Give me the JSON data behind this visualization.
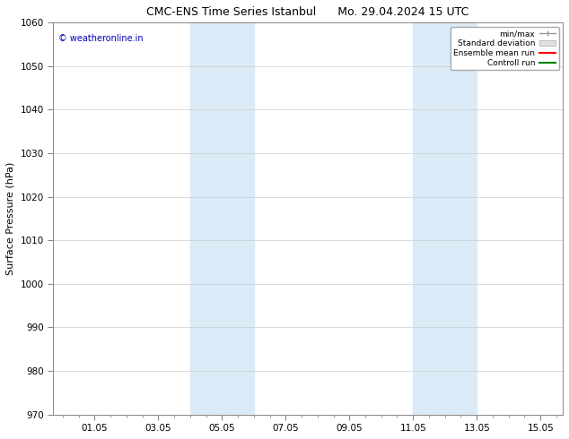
{
  "title_left": "CMC-ENS Time Series Istanbul",
  "title_right": "Mo. 29.04.2024 15 UTC",
  "ylabel": "Surface Pressure (hPa)",
  "ylim": [
    970,
    1060
  ],
  "yticks": [
    970,
    980,
    990,
    1000,
    1010,
    1020,
    1030,
    1040,
    1050,
    1060
  ],
  "xtick_labels": [
    "01.05",
    "03.05",
    "05.05",
    "07.05",
    "09.05",
    "11.05",
    "13.05",
    "15.05"
  ],
  "xtick_positions": [
    1.0,
    3.0,
    5.0,
    7.0,
    9.0,
    11.0,
    13.0,
    15.0
  ],
  "xlim": [
    -0.3,
    15.7
  ],
  "shaded_regions": [
    {
      "xstart": 4.0,
      "xend": 6.0,
      "color": "#daeaf7"
    },
    {
      "xstart": 11.0,
      "xend": 13.0,
      "color": "#daeaf7"
    }
  ],
  "watermark_text": "© weatheronline.in",
  "watermark_color": "#0000bb",
  "watermark_fontsize": 7,
  "legend_labels": [
    "min/max",
    "Standard deviation",
    "Ensemble mean run",
    "Controll run"
  ],
  "legend_colors_line": [
    "#999999",
    "#cccccc",
    "#ff0000",
    "#008000"
  ],
  "bg_color": "#ffffff",
  "grid_color": "#cccccc",
  "title_fontsize": 9,
  "axis_fontsize": 8,
  "tick_fontsize": 7.5
}
